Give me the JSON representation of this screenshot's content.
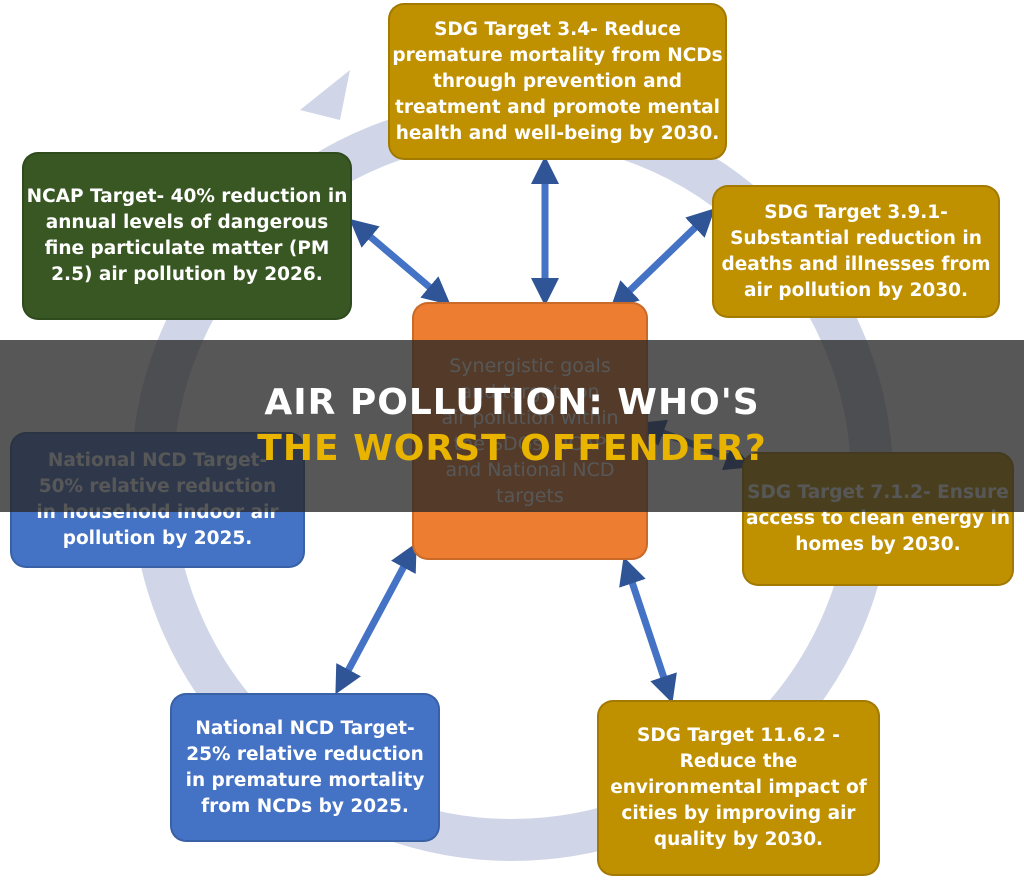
{
  "center": {
    "lines": [
      "Synergistic goals",
      "and targets on",
      "air pollution within",
      "the SDGs, NCAP",
      "and National NCD",
      "targets"
    ]
  },
  "nodes": [
    {
      "lines": [
        "SDG Target 3.4- Reduce",
        "premature mortality from NCDs",
        "through prevention and",
        "treatment and promote mental",
        "health and well-being by 2030."
      ]
    },
    {
      "lines": [
        "NCAP Target- 40% reduction in",
        "annual levels of dangerous",
        "fine particulate matter (PM",
        "2.5) air pollution by 2026."
      ]
    },
    {
      "lines": [
        "SDG Target 3.9.1-",
        "Substantial reduction in",
        "deaths and illnesses from",
        "air pollution by 2030."
      ]
    },
    {
      "lines": [
        "National NCD Target-",
        "50% relative reduction",
        "in household indoor air",
        "pollution by 2025."
      ]
    },
    {
      "lines": [
        "SDG Target 7.1.2- Ensure",
        "access to clean energy in",
        "homes by 2030."
      ]
    },
    {
      "lines": [
        "National NCD Target-",
        "25% relative reduction",
        "in premature mortality",
        "from NCDs by 2025."
      ]
    },
    {
      "lines": [
        "SDG Target 11.6.2 -",
        "Reduce the",
        "environmental impact of",
        "cities by improving air",
        "quality by 2030."
      ]
    }
  ],
  "banner": {
    "line1": "AIR POLLUTION: WHO'S",
    "line2": "THE WORST OFFENDER?"
  }
}
